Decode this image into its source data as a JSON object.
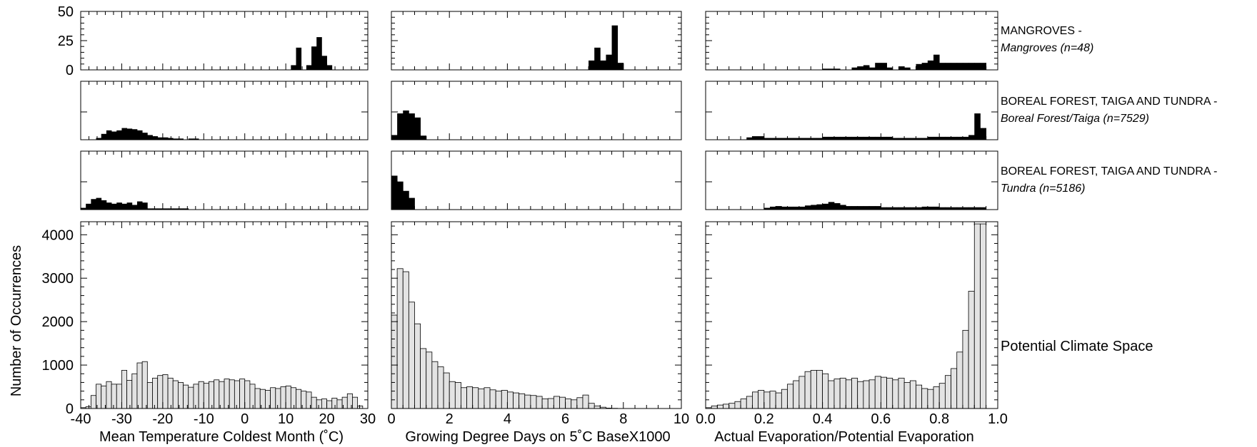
{
  "chart_data": {
    "type": "bar",
    "ylabel": "Number of Occurrences",
    "columns": [
      {
        "xlabel": "Mean Temperature Coldest Month (˚C)",
        "xlim": [
          -40,
          30
        ],
        "xticks": [
          "-40",
          "-30",
          "-20",
          "-10",
          "0",
          "10",
          "20",
          "30"
        ],
        "xtick_values": [
          -40,
          -30,
          -20,
          -10,
          0,
          10,
          20,
          30
        ],
        "bin_start": -40,
        "bin_width": 1.25,
        "potential_climate_space": [
          20,
          40,
          300,
          560,
          520,
          620,
          560,
          560,
          880,
          650,
          800,
          1050,
          1080,
          600,
          700,
          760,
          780,
          700,
          640,
          600,
          540,
          490,
          560,
          620,
          580,
          620,
          660,
          620,
          680,
          660,
          640,
          680,
          640,
          560,
          460,
          440,
          420,
          480,
          460,
          500,
          520,
          480,
          440,
          400,
          380,
          260,
          200,
          220,
          180,
          240,
          200,
          260,
          340,
          260,
          60,
          0
        ]
      },
      {
        "xlabel": "Growing Degree Days on 5˚C BaseX1000",
        "xlim": [
          0,
          10
        ],
        "xticks": [
          "0",
          "2",
          "4",
          "6",
          "8",
          "10"
        ],
        "xtick_values": [
          0,
          2,
          4,
          6,
          8,
          10
        ],
        "bin_start": 0,
        "bin_width": 0.2,
        "potential_climate_space": [
          2150,
          3220,
          3150,
          2450,
          1950,
          1380,
          1300,
          1080,
          960,
          820,
          620,
          600,
          480,
          500,
          480,
          450,
          480,
          430,
          400,
          420,
          380,
          360,
          340,
          310,
          300,
          280,
          220,
          230,
          280,
          260,
          220,
          200,
          250,
          310,
          120,
          60,
          30,
          10,
          5,
          0
        ]
      },
      {
        "xlabel": "Actual Evaporation/Potential Evaporation",
        "xlim": [
          0.0,
          1.0
        ],
        "xticks": [
          "0.0",
          "0.2",
          "0.4",
          "0.6",
          "0.8",
          "1.0"
        ],
        "xtick_values": [
          0.0,
          0.2,
          0.4,
          0.6,
          0.8,
          1.0
        ],
        "bin_start": 0.0,
        "bin_width": 0.02,
        "potential_climate_space": [
          20,
          60,
          80,
          100,
          120,
          160,
          220,
          280,
          380,
          420,
          380,
          400,
          360,
          440,
          560,
          640,
          740,
          850,
          880,
          880,
          800,
          640,
          680,
          700,
          660,
          700,
          620,
          640,
          660,
          740,
          720,
          700,
          660,
          700,
          600,
          640,
          540,
          460,
          440,
          500,
          580,
          760,
          920,
          1300,
          1800,
          2700,
          4250,
          4250
        ]
      }
    ],
    "rows": [
      {
        "label": "MANGROVES -",
        "sub": "Mangroves (n=48)",
        "yticks": [
          "0",
          "25",
          "50"
        ],
        "ytick_values": [
          0,
          25,
          50
        ],
        "ylim": [
          0,
          50
        ],
        "series": [
          {
            "bins": {
              "41": 4,
              "42": 19,
              "44": 4,
              "45": 20,
              "46": 28,
              "47": 12,
              "48": 4
            }
          },
          {
            "bins": {
              "34": 8,
              "35": 19,
              "36": 8,
              "37": 13,
              "38": 38,
              "39": 6
            }
          },
          {
            "bins": {
              "20": 1,
              "21": 1,
              "22": 1,
              "25": 2,
              "26": 3,
              "27": 4,
              "28": 2,
              "29": 6,
              "30": 6,
              "31": 2,
              "33": 3,
              "34": 2,
              "36": 5,
              "37": 6,
              "38": 8,
              "39": 13,
              "40": 6,
              "41": 6,
              "42": 6,
              "43": 6,
              "44": 6,
              "45": 6,
              "46": 6,
              "47": 6
            }
          }
        ]
      },
      {
        "label": "BOREAL FOREST, TAIGA AND TUNDRA -",
        "sub": "Boreal Forest/Taiga (n=7529)",
        "ylim": [
          0,
          1
        ],
        "series": [
          {
            "bins": {
              "3": 0.03,
              "4": 0.1,
              "5": 0.16,
              "6": 0.14,
              "7": 0.16,
              "8": 0.2,
              "9": 0.19,
              "10": 0.18,
              "11": 0.16,
              "12": 0.12,
              "13": 0.08,
              "14": 0.06,
              "15": 0.04,
              "16": 0.04,
              "17": 0.03,
              "18": 0.02,
              "19": 0.02,
              "21": 0.02,
              "22": 0.02
            }
          },
          {
            "bins": {
              "0": 0.08,
              "1": 0.45,
              "2": 0.5,
              "3": 0.45,
              "4": 0.38,
              "5": 0.07
            }
          },
          {
            "bins": {
              "7": 0.04,
              "8": 0.06,
              "9": 0.06,
              "10": 0.03,
              "11": 0.03,
              "12": 0.03,
              "13": 0.03,
              "14": 0.03,
              "15": 0.03,
              "16": 0.03,
              "17": 0.03,
              "18": 0.03,
              "19": 0.03,
              "20": 0.05,
              "21": 0.05,
              "22": 0.05,
              "23": 0.05,
              "24": 0.05,
              "25": 0.05,
              "26": 0.05,
              "27": 0.05,
              "28": 0.05,
              "29": 0.05,
              "30": 0.05,
              "31": 0.05,
              "32": 0.03,
              "33": 0.03,
              "34": 0.03,
              "35": 0.03,
              "36": 0.03,
              "37": 0.03,
              "38": 0.05,
              "39": 0.05,
              "40": 0.05,
              "41": 0.05,
              "42": 0.05,
              "43": 0.05,
              "44": 0.05,
              "45": 0.08,
              "46": 0.45,
              "47": 0.2
            }
          }
        ]
      },
      {
        "label": "BOREAL FOREST, TAIGA AND TUNDRA -",
        "sub": "Tundra (n=5186)",
        "ylim": [
          0,
          1
        ],
        "series": [
          {
            "bins": {
              "0": 0.03,
              "1": 0.1,
              "2": 0.18,
              "3": 0.2,
              "4": 0.16,
              "5": 0.12,
              "6": 0.1,
              "7": 0.12,
              "8": 0.1,
              "9": 0.12,
              "10": 0.08,
              "11": 0.14,
              "12": 0.12,
              "13": 0.02,
              "14": 0.02,
              "15": 0.02,
              "16": 0.02,
              "17": 0.02,
              "18": 0.02,
              "19": 0.02,
              "20": 0.02
            }
          },
          {
            "bins": {
              "0": 0.58,
              "1": 0.48,
              "2": 0.32,
              "3": 0.2
            }
          },
          {
            "bins": {
              "10": 0.03,
              "11": 0.05,
              "12": 0.06,
              "13": 0.05,
              "14": 0.05,
              "15": 0.05,
              "16": 0.05,
              "17": 0.07,
              "18": 0.08,
              "19": 0.09,
              "20": 0.1,
              "21": 0.13,
              "22": 0.11,
              "23": 0.08,
              "24": 0.06,
              "25": 0.06,
              "26": 0.06,
              "27": 0.06,
              "28": 0.06,
              "29": 0.06,
              "30": 0.04,
              "31": 0.04,
              "32": 0.04,
              "33": 0.04,
              "34": 0.04,
              "35": 0.04,
              "36": 0.04,
              "37": 0.05,
              "38": 0.05,
              "39": 0.05,
              "40": 0.04,
              "41": 0.04,
              "42": 0.04,
              "43": 0.04,
              "44": 0.04,
              "45": 0.04,
              "46": 0.04,
              "47": 0.04
            }
          }
        ]
      },
      {
        "label": "Potential Climate Space",
        "yticks": [
          "0",
          "1000",
          "2000",
          "3000",
          "4000"
        ],
        "ytick_values": [
          0,
          1000,
          2000,
          3000,
          4000
        ],
        "ylim": [
          0,
          4300
        ]
      }
    ],
    "colors": {
      "mini_bars": "#000000",
      "climate_bars": "#e3e3e3",
      "outline": "#000000"
    },
    "grid": false
  }
}
